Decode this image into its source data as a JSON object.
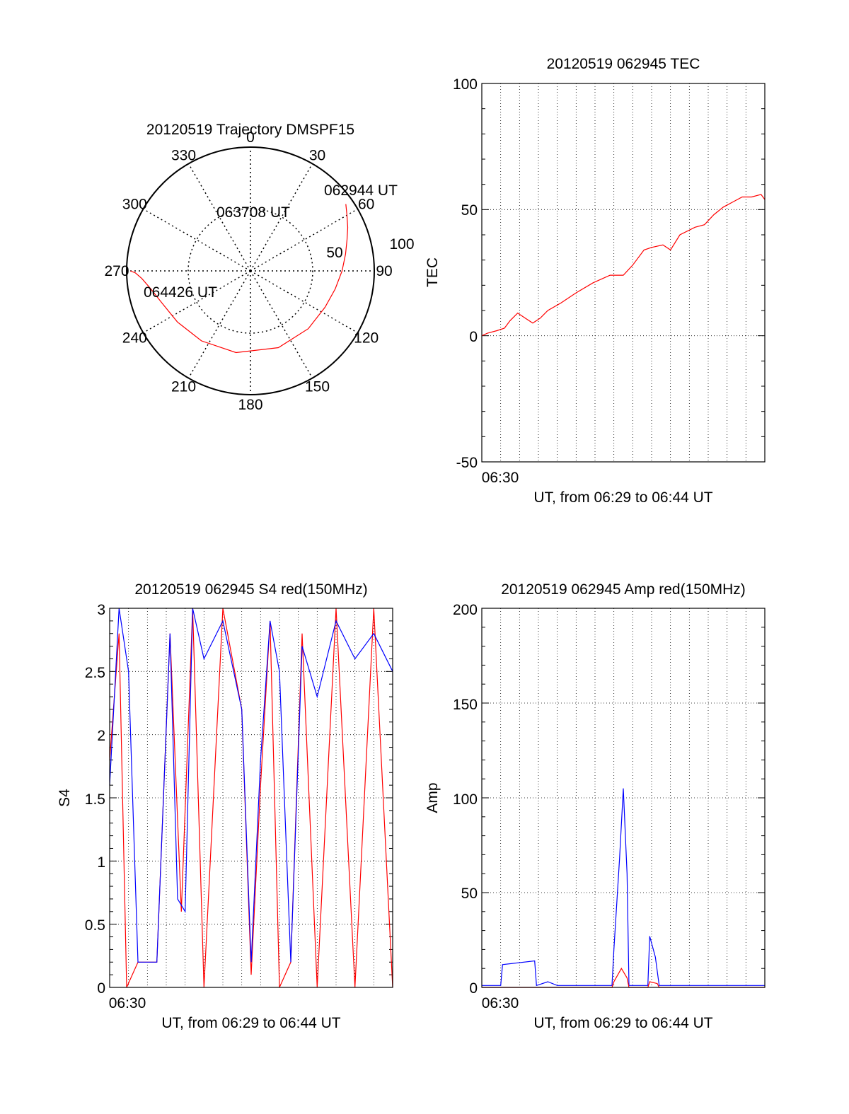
{
  "colors": {
    "red": "#ff0000",
    "blue": "#0000ff",
    "axis": "#000000",
    "grid": "#000000"
  },
  "chart_data": [
    {
      "id": "trajectory",
      "type": "scatter",
      "subtype": "polar",
      "title": "20120519 Trajectory DMSPF15",
      "angle_ticks": [
        "0",
        "30",
        "60",
        "90",
        "120",
        "150",
        "180",
        "210",
        "240",
        "270",
        "300",
        "330"
      ],
      "radial_ticks": [
        "50",
        "100"
      ],
      "grid": true,
      "track": {
        "azimuth_deg": [
          55,
          60,
          66,
          72,
          80,
          90,
          102,
          116,
          135,
          160,
          190,
          215,
          235,
          250,
          260,
          266,
          269,
          270
        ],
        "radius": [
          94,
          90,
          86,
          82,
          78,
          74,
          70,
          67,
          66,
          66,
          67,
          69,
          72,
          76,
          82,
          88,
          93,
          97
        ]
      },
      "annotations": [
        {
          "text": "062944 UT"
        },
        {
          "text": "063708 UT"
        },
        {
          "text": "064426 UT"
        }
      ]
    },
    {
      "id": "tec",
      "type": "line",
      "title": "20120519 062945 TEC",
      "xlabel": "UT, from 06:29 to 06:44 UT",
      "ylabel": "TEC",
      "x_tick_labels": [
        "06:30"
      ],
      "y_ticks": [
        "-50",
        "0",
        "50",
        "100"
      ],
      "ylim": [
        -50,
        100
      ],
      "grid": true,
      "series": [
        {
          "color": "red",
          "x_min": [
            0.0,
            0.3,
            0.8,
            1.2,
            1.5,
            1.9,
            2.3,
            2.7,
            3.1,
            3.5,
            4.2,
            5.0,
            5.9,
            6.8,
            7.5,
            8.0,
            8.6,
            9.0,
            9.6,
            10.0,
            10.5,
            11.3,
            11.8,
            12.3,
            12.8,
            13.3,
            13.8,
            14.3,
            14.8,
            15.0
          ],
          "values": [
            0,
            1,
            2,
            3,
            6,
            9,
            7,
            5,
            7,
            10,
            13,
            17,
            21,
            24,
            24,
            28,
            34,
            35,
            36,
            34,
            40,
            43,
            44,
            48,
            51,
            53,
            55,
            55,
            56,
            54
          ]
        }
      ]
    },
    {
      "id": "s4",
      "type": "line",
      "title": "20120519 062945 S4 red(150MHz)",
      "xlabel": "UT, from 06:29 to 06:44 UT",
      "ylabel": "S4",
      "x_tick_labels": [
        "06:30"
      ],
      "y_ticks": [
        "0",
        "0.5",
        "1",
        "1.5",
        "2",
        "2.5",
        "3"
      ],
      "ylim": [
        0,
        3
      ],
      "grid": true,
      "series": [
        {
          "color": "red",
          "x_min": [
            0.0,
            0.5,
            0.9,
            1.5,
            2.5,
            3.2,
            3.8,
            4.4,
            5.0,
            6.0,
            7.0,
            7.5,
            8.0,
            8.5,
            9.0,
            9.6,
            10.2,
            11.0,
            12.0,
            13.0,
            14.0,
            15.0
          ],
          "values": [
            1.8,
            2.8,
            0.0,
            0.2,
            0.2,
            2.8,
            0.6,
            3.0,
            0.0,
            3.0,
            2.2,
            0.1,
            1.6,
            2.9,
            0.0,
            0.2,
            2.8,
            0.0,
            3.0,
            0.0,
            3.0,
            0.0
          ]
        },
        {
          "color": "blue",
          "x_min": [
            0.0,
            0.5,
            1.0,
            1.5,
            2.0,
            2.5,
            3.2,
            3.6,
            4.0,
            4.4,
            5.0,
            6.0,
            7.0,
            7.5,
            8.0,
            8.5,
            9.0,
            9.6,
            10.2,
            11.0,
            12.0,
            13.0,
            14.0,
            15.0
          ],
          "values": [
            1.6,
            3.0,
            2.5,
            0.2,
            0.2,
            0.2,
            2.8,
            0.7,
            0.6,
            3.0,
            2.6,
            2.9,
            2.2,
            0.2,
            1.8,
            2.9,
            2.5,
            0.2,
            2.7,
            2.3,
            2.9,
            2.6,
            2.8,
            2.5
          ]
        }
      ]
    },
    {
      "id": "amp",
      "type": "line",
      "title": "20120519 062945 Amp red(150MHz)",
      "xlabel": "UT, from 06:29 to 06:44 UT",
      "ylabel": "Amp",
      "x_tick_labels": [
        "06:30"
      ],
      "y_ticks": [
        "0",
        "50",
        "100",
        "150",
        "200"
      ],
      "ylim": [
        0,
        200
      ],
      "grid": true,
      "series": [
        {
          "color": "blue",
          "x_min": [
            0.0,
            1.0,
            1.1,
            2.8,
            2.9,
            3.5,
            4.0,
            6.9,
            7.0,
            7.3,
            7.5,
            7.7,
            7.8,
            8.8,
            8.9,
            9.2,
            9.4,
            15.0
          ],
          "values": [
            1,
            1,
            12,
            14,
            1,
            3,
            1,
            1,
            20,
            68,
            105,
            60,
            1,
            1,
            27,
            16,
            1,
            1
          ]
        },
        {
          "color": "red",
          "x_min": [
            0.0,
            6.9,
            7.0,
            7.4,
            7.7,
            7.8,
            8.8,
            8.9,
            9.3,
            9.4,
            15.0
          ],
          "values": [
            0,
            0,
            3,
            10,
            5,
            0,
            0,
            3,
            2,
            0,
            0
          ]
        }
      ]
    }
  ]
}
